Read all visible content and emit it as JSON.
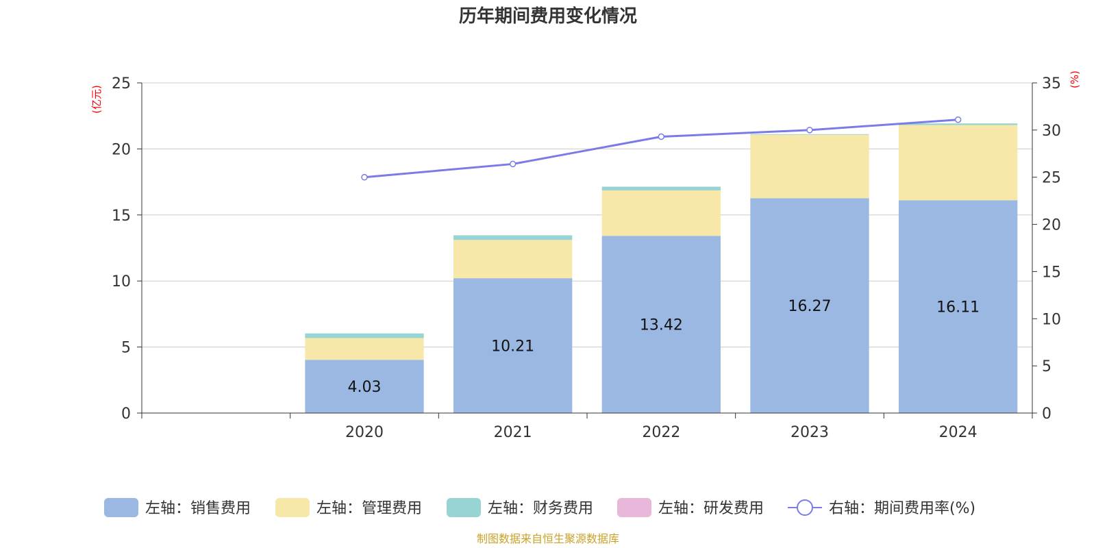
{
  "chart_data": {
    "type": "bar",
    "title": "历年期间费用变化情况",
    "categories": [
      "",
      "2020",
      "2021",
      "2022",
      "2023",
      "2024"
    ],
    "left_axis": {
      "unit": "(亿元)",
      "ylim": [
        0,
        25
      ],
      "ticks": [
        "0",
        "5",
        "10",
        "15",
        "20",
        "25"
      ]
    },
    "right_axis": {
      "unit": "(%)",
      "ylim": [
        0,
        35
      ],
      "ticks": [
        "0",
        "5",
        "10",
        "15",
        "20",
        "25",
        "30",
        "35"
      ]
    },
    "series": [
      {
        "name": "左轴：销售费用",
        "axis": "left",
        "type": "bar",
        "color": "#9bb8e2",
        "values": [
          null,
          4.03,
          10.21,
          13.42,
          16.27,
          16.11
        ],
        "labels": [
          "",
          "4.03",
          "10.21",
          "13.42",
          "16.27",
          "16.11"
        ]
      },
      {
        "name": "左轴：管理费用",
        "axis": "left",
        "type": "bar",
        "color": "#f7e7a8",
        "values": [
          null,
          1.65,
          2.9,
          3.44,
          4.8,
          5.7
        ],
        "labels": []
      },
      {
        "name": "左轴：财务费用",
        "axis": "left",
        "type": "bar",
        "color": "#98d4d4",
        "values": [
          null,
          0.35,
          0.35,
          0.28,
          0.05,
          0.12
        ],
        "labels": []
      },
      {
        "name": "左轴：研发费用",
        "axis": "left",
        "type": "bar",
        "color": "#e8b7d9",
        "values": [
          null,
          0,
          0,
          0,
          0,
          0
        ],
        "labels": []
      },
      {
        "name": "右轴：期间费用率(%)",
        "axis": "right",
        "type": "line",
        "color": "#7b7be8",
        "values": [
          null,
          25.0,
          26.4,
          29.3,
          30.0,
          31.1
        ],
        "labels": []
      }
    ],
    "grid": true,
    "legend": "bottom"
  },
  "source_note": "制图数据来自恒生聚源数据库"
}
